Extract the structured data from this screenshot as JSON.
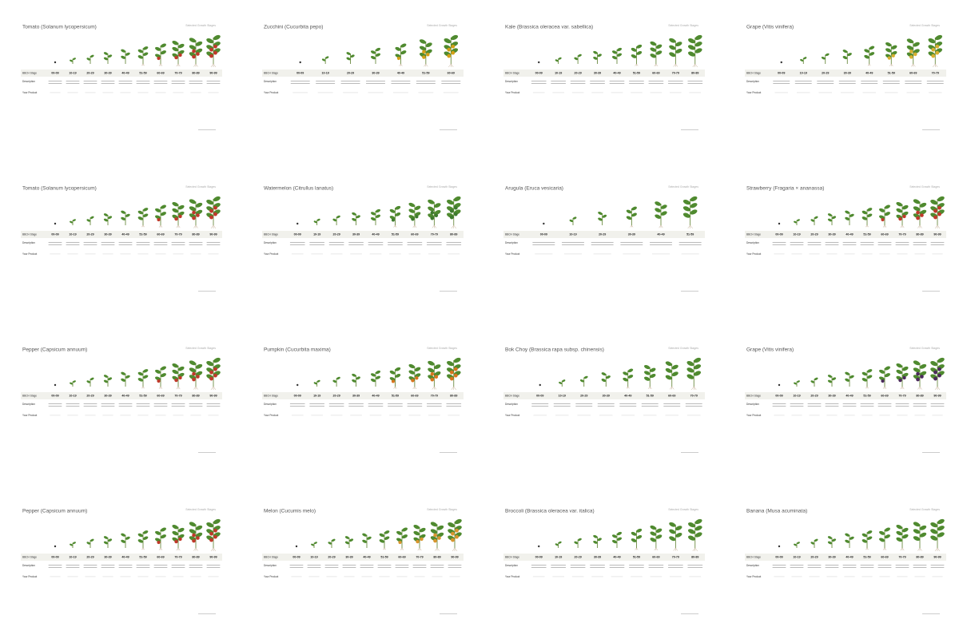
{
  "row_labels": [
    "BBCH Stage",
    "Description",
    "Your Product"
  ],
  "corner": "Selected Growth Stages",
  "panels": [
    {
      "title": "Tomato (Solanum lycopersicum)",
      "stages": [
        "00-09",
        "10-19",
        "20-29",
        "30-39",
        "40-49",
        "51-59",
        "60-69",
        "70-79",
        "80-89",
        "90-99"
      ],
      "fruit": "#c0392b"
    },
    {
      "title": "Zucchini (Cucurbita pepo)",
      "stages": [
        "00-09",
        "10-19",
        "20-29",
        "30-39",
        "40-49",
        "51-59",
        "60-69"
      ],
      "fruit": "#d4a017"
    },
    {
      "title": "Kale (Brassica oleracea var. sabellica)",
      "stages": [
        "00-09",
        "10-19",
        "20-29",
        "30-39",
        "40-49",
        "51-59",
        "60-69",
        "70-79",
        "80-89"
      ],
      "fruit": null
    },
    {
      "title": "Grape (Vitis vinifera)",
      "stages": [
        "00-09",
        "10-19",
        "20-29",
        "30-39",
        "40-49",
        "51-59",
        "60-69",
        "70-79"
      ],
      "fruit": "#d8b030"
    },
    {
      "title": "Tomato (Solanum lycopersicum)",
      "stages": [
        "00-09",
        "10-19",
        "20-29",
        "30-39",
        "40-49",
        "51-59",
        "60-69",
        "70-79",
        "80-89",
        "90-99"
      ],
      "fruit": "#c0392b"
    },
    {
      "title": "Watermelon (Citrullus lanatus)",
      "stages": [
        "00-09",
        "10-19",
        "20-29",
        "30-39",
        "40-49",
        "51-59",
        "60-69",
        "70-79",
        "80-89"
      ],
      "fruit": "#3d7a2e"
    },
    {
      "title": "Arugula (Eruca vesicaria)",
      "stages": [
        "00-09",
        "10-19",
        "20-29",
        "30-39",
        "40-49",
        "51-59"
      ],
      "fruit": null
    },
    {
      "title": "Strawberry (Fragaria × ananassa)",
      "stages": [
        "00-09",
        "10-19",
        "20-29",
        "30-39",
        "40-49",
        "51-59",
        "60-69",
        "70-79",
        "80-89",
        "90-99"
      ],
      "fruit": "#c0392b"
    },
    {
      "title": "Pepper (Capsicum annuum)",
      "stages": [
        "00-09",
        "10-19",
        "20-29",
        "30-39",
        "40-49",
        "51-59",
        "60-69",
        "70-79",
        "80-89",
        "90-99"
      ],
      "fruit": "#c0392b"
    },
    {
      "title": "Pumpkin (Cucurbita maxima)",
      "stages": [
        "00-09",
        "10-19",
        "20-29",
        "30-39",
        "40-49",
        "51-59",
        "60-69",
        "70-79",
        "80-89"
      ],
      "fruit": "#d9751e"
    },
    {
      "title": "Bok Choy (Brassica rapa subsp. chinensis)",
      "stages": [
        "00-09",
        "10-19",
        "20-29",
        "30-39",
        "40-49",
        "51-59",
        "60-69",
        "70-79"
      ],
      "fruit": null
    },
    {
      "title": "Grape (Vitis vinifera)",
      "stages": [
        "00-09",
        "10-19",
        "20-29",
        "30-39",
        "40-49",
        "51-59",
        "60-69",
        "70-79",
        "80-89",
        "90-99"
      ],
      "fruit": "#4b2a5c"
    },
    {
      "title": "Pepper (Capsicum annuum)",
      "stages": [
        "00-09",
        "10-19",
        "20-29",
        "30-39",
        "40-49",
        "51-59",
        "60-69",
        "70-79",
        "80-89",
        "90-99"
      ],
      "fruit": "#c0392b"
    },
    {
      "title": "Melon (Cucumis melo)",
      "stages": [
        "00-09",
        "10-19",
        "20-29",
        "30-39",
        "40-49",
        "51-59",
        "60-69",
        "70-79",
        "80-89",
        "90-99"
      ],
      "fruit": "#d9962e"
    },
    {
      "title": "Broccoli (Brassica oleracea var. italica)",
      "stages": [
        "00-09",
        "10-19",
        "20-29",
        "30-39",
        "40-49",
        "51-59",
        "60-69",
        "70-79",
        "80-89"
      ],
      "fruit": null
    },
    {
      "title": "Banana (Musa acuminata)",
      "stages": [
        "00-09",
        "10-19",
        "20-29",
        "30-39",
        "40-49",
        "51-59",
        "60-69",
        "70-79",
        "80-89",
        "90-99"
      ],
      "fruit": null
    }
  ]
}
